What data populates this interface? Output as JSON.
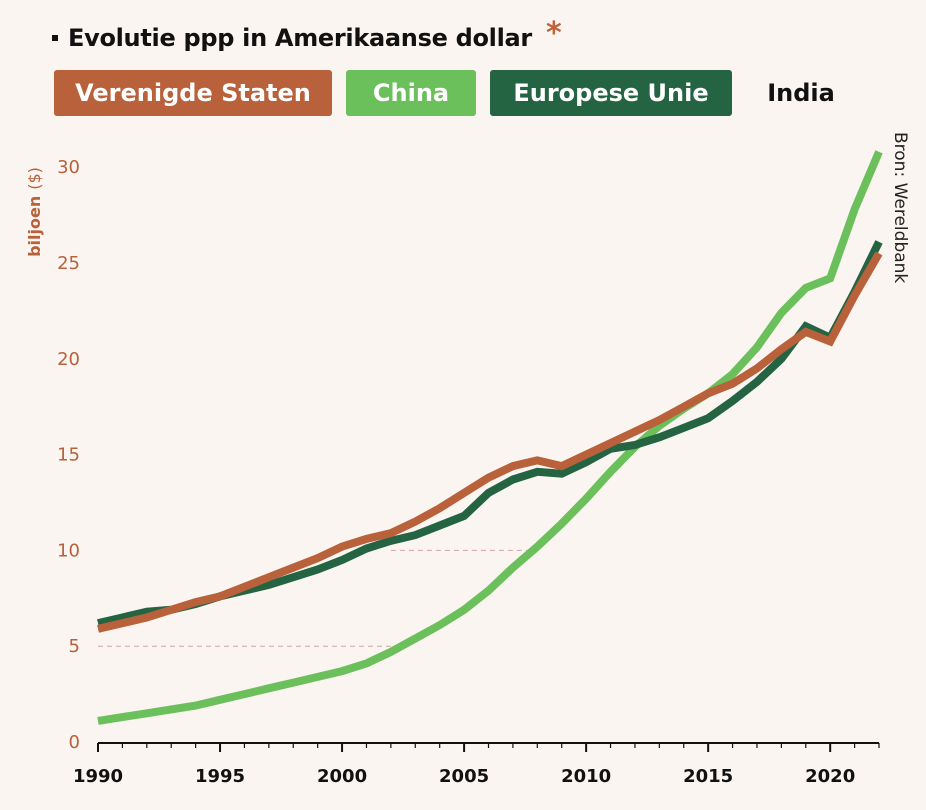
{
  "header": {
    "title": "Evolutie ppp in Amerikaanse dollar",
    "asterisk": "*"
  },
  "legend": [
    {
      "label": "Verenigde Staten",
      "color": "#b8613b",
      "filled": true
    },
    {
      "label": "China",
      "color": "#6cc05c",
      "filled": true
    },
    {
      "label": "Europese Unie",
      "color": "#246443",
      "filled": true
    },
    {
      "label": "India",
      "color": "#111111",
      "filled": false
    }
  ],
  "source": "Bron: Wereldbank",
  "chart_data": {
    "type": "line",
    "title": "Evolutie ppp in Amerikaanse dollar",
    "ylabel": "biljoen",
    "ylabel_unit": "($)",
    "xlabel": "",
    "xlim": [
      1990,
      2022
    ],
    "ylim": [
      0,
      31
    ],
    "yticks": [
      "0",
      "5",
      "10",
      "15",
      "20",
      "25",
      "30"
    ],
    "xticks": [
      "1990",
      "1995",
      "2000",
      "2005",
      "2010",
      "2015",
      "2020"
    ],
    "reference_lines": [
      {
        "y": 5.0,
        "x_from": 1990,
        "x_to": 2002
      },
      {
        "y": 10.0,
        "x_from": 2002,
        "x_to": 2008
      }
    ],
    "x": [
      1990,
      1991,
      1992,
      1993,
      1994,
      1995,
      1996,
      1997,
      1998,
      1999,
      2000,
      2001,
      2002,
      2003,
      2004,
      2005,
      2006,
      2007,
      2008,
      2009,
      2010,
      2011,
      2012,
      2013,
      2014,
      2015,
      2016,
      2017,
      2018,
      2019,
      2020,
      2021,
      2022
    ],
    "series": [
      {
        "name": "China",
        "color": "#6cc05c",
        "values": [
          1.1,
          1.3,
          1.5,
          1.7,
          1.9,
          2.2,
          2.5,
          2.8,
          3.1,
          3.4,
          3.7,
          4.1,
          4.7,
          5.4,
          6.1,
          6.9,
          7.9,
          9.1,
          10.2,
          11.4,
          12.7,
          14.1,
          15.4,
          16.5,
          17.4,
          18.2,
          19.2,
          20.6,
          22.4,
          23.7,
          24.2,
          27.8,
          30.8
        ]
      },
      {
        "name": "Europese Unie",
        "color": "#246443",
        "values": [
          6.2,
          6.5,
          6.8,
          6.9,
          7.2,
          7.6,
          7.9,
          8.2,
          8.6,
          9.0,
          9.5,
          10.1,
          10.5,
          10.8,
          11.3,
          11.8,
          13.0,
          13.7,
          14.1,
          14.0,
          14.6,
          15.3,
          15.5,
          15.9,
          16.4,
          16.9,
          17.8,
          18.8,
          20.0,
          21.7,
          21.1,
          23.5,
          26.1
        ]
      },
      {
        "name": "Verenigde Staten",
        "color": "#b8613b",
        "values": [
          5.9,
          6.2,
          6.5,
          6.9,
          7.3,
          7.6,
          8.1,
          8.6,
          9.1,
          9.6,
          10.2,
          10.6,
          10.9,
          11.5,
          12.2,
          13.0,
          13.8,
          14.4,
          14.7,
          14.4,
          15.0,
          15.6,
          16.2,
          16.8,
          17.5,
          18.2,
          18.7,
          19.5,
          20.5,
          21.4,
          20.9,
          23.3,
          25.5
        ]
      }
    ]
  }
}
